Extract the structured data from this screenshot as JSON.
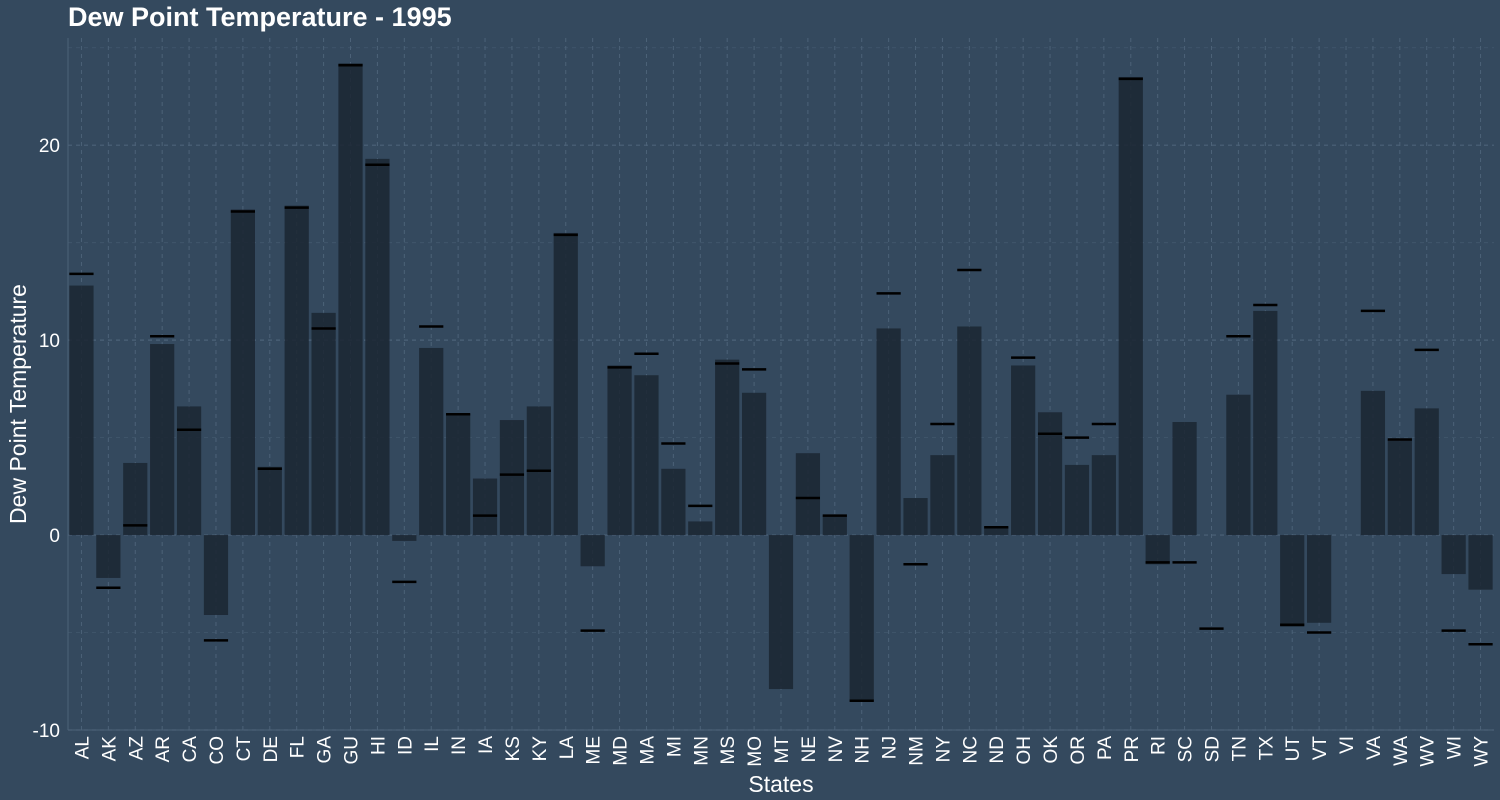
{
  "chart_data": {
    "type": "bar",
    "title": "Dew Point Temperature - 1995",
    "xlabel": "States",
    "ylabel": "Dew Point Temperature",
    "ylim": [
      -10,
      25.5
    ],
    "yticks": [
      -10,
      0,
      10,
      20
    ],
    "grid": true,
    "categories": [
      "AL",
      "AK",
      "AZ",
      "AR",
      "CA",
      "CO",
      "CT",
      "DE",
      "FL",
      "GA",
      "GU",
      "HI",
      "ID",
      "IL",
      "IN",
      "IA",
      "KS",
      "KY",
      "LA",
      "ME",
      "MD",
      "MA",
      "MI",
      "MN",
      "MS",
      "MO",
      "MT",
      "NE",
      "NV",
      "NH",
      "NJ",
      "NM",
      "NY",
      "NC",
      "ND",
      "OH",
      "OK",
      "OR",
      "PA",
      "PR",
      "RI",
      "SC",
      "SD",
      "TN",
      "TX",
      "UT",
      "VT",
      "VI",
      "VA",
      "WA",
      "WV",
      "WI",
      "WY"
    ],
    "series": [
      {
        "values": [
          12.8,
          -2.2,
          3.7,
          9.8,
          6.6,
          -4.1,
          16.7,
          3.5,
          16.9,
          11.4,
          24.2,
          19.3,
          -0.3,
          9.6,
          6.2,
          2.9,
          5.9,
          6.6,
          15.5,
          -1.6,
          8.7,
          8.2,
          3.4,
          0.7,
          9.0,
          7.3,
          -7.9,
          4.2,
          1.0,
          -8.5,
          10.6,
          1.9,
          4.1,
          10.7,
          0.4,
          8.7,
          6.3,
          3.6,
          4.1,
          23.5,
          -1.5,
          5.8,
          null,
          7.2,
          11.5,
          -4.7,
          -4.5,
          null,
          7.4,
          4.9,
          6.5,
          -2.0,
          -2.8
        ]
      },
      {
        "values": [
          13.4,
          -2.7,
          0.5,
          10.2,
          5.4,
          -5.4,
          16.6,
          3.4,
          16.8,
          10.6,
          24.1,
          19.0,
          -2.4,
          10.7,
          6.2,
          1.0,
          3.1,
          3.3,
          15.4,
          -4.9,
          8.6,
          9.3,
          4.7,
          1.5,
          8.8,
          8.5,
          null,
          1.9,
          1.0,
          -8.5,
          12.4,
          -1.5,
          5.7,
          13.6,
          0.4,
          9.1,
          5.2,
          5.0,
          5.7,
          23.4,
          -1.4,
          -1.4,
          -4.8,
          10.2,
          11.8,
          -4.6,
          -5.0,
          null,
          11.5,
          4.9,
          9.5,
          -4.9,
          -5.6
        ]
      }
    ],
    "colors": {
      "background": "#34495e",
      "bar": "#1b2631",
      "mark": "#000000",
      "grid": "#4c6278",
      "text": "#ffffff"
    }
  }
}
